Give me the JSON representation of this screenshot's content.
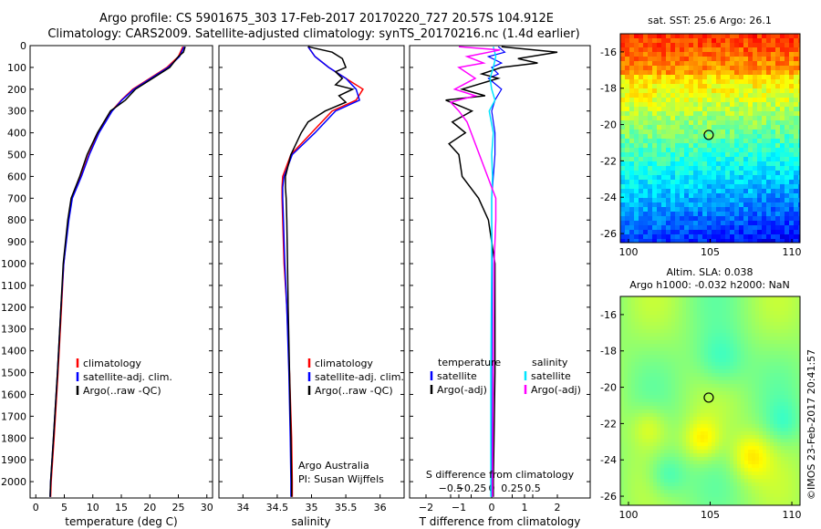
{
  "header": {
    "title_line1": "Argo profile: CS 5901675_303 17-Feb-2017 20170220_727 20.57S 104.912E",
    "title_line2": "Climatology: CARS2009. Satellite-adjusted climatology: synTS_20170216.nc (1.4d earlier)"
  },
  "side_label": "©IMOS 23-Feb-2017 20:41:57",
  "colors": {
    "climatology": "#ff0000",
    "satellite": "#0000ff",
    "argo": "#000000",
    "sal_satellite": "#00e5ff",
    "sal_argo": "#ff00ff"
  },
  "chart_data": [
    {
      "type": "line",
      "name": "temperature-profile",
      "xlabel": "temperature (deg C)",
      "xlim": [
        -1,
        31
      ],
      "xticks": [
        0,
        5,
        10,
        15,
        20,
        25,
        30
      ],
      "xtick_labels": [
        "0",
        "5",
        "10",
        "15",
        "20",
        "25",
        "30"
      ],
      "ylim": [
        2075,
        0
      ],
      "yticks": [
        0,
        100,
        200,
        300,
        400,
        500,
        600,
        700,
        800,
        900,
        1000,
        1100,
        1200,
        1300,
        1400,
        1500,
        1600,
        1700,
        1800,
        1900,
        2000
      ],
      "ytick_labels": [
        "0",
        "100",
        "200",
        "300",
        "400",
        "500",
        "600",
        "700",
        "800",
        "900",
        "1000",
        "1100",
        "1200",
        "1300",
        "1400",
        "1500",
        "1600",
        "1700",
        "1800",
        "1900",
        "2000"
      ],
      "legend": [
        "climatology",
        "satellite-adj. clim.",
        "Argo(..raw -QC)"
      ],
      "series": [
        {
          "name": "climatology",
          "depth": [
            5,
            50,
            100,
            150,
            200,
            250,
            300,
            400,
            500,
            600,
            700,
            800,
            1000,
            1200,
            1500,
            1800,
            2000,
            2070
          ],
          "values": [
            25.8,
            25.0,
            23.0,
            20.0,
            17.0,
            15.0,
            13.3,
            11.0,
            9.3,
            7.9,
            6.3,
            5.7,
            4.9,
            4.5,
            3.9,
            3.2,
            2.7,
            2.6
          ]
        },
        {
          "name": "satellite-adj. clim.",
          "depth": [
            5,
            50,
            100,
            150,
            200,
            250,
            300,
            400,
            500,
            600,
            700,
            800,
            1000,
            1200,
            1500,
            1800,
            2000,
            2070
          ],
          "values": [
            26.0,
            25.2,
            23.2,
            20.2,
            17.2,
            15.1,
            13.4,
            11.1,
            9.4,
            8.0,
            6.4,
            5.8,
            4.9,
            4.4,
            3.8,
            3.1,
            2.6,
            2.5
          ]
        },
        {
          "name": "Argo(..raw -QC)",
          "depth": [
            5,
            30,
            50,
            100,
            150,
            200,
            250,
            300,
            400,
            500,
            600,
            700,
            800,
            1000,
            1200,
            1500,
            1800,
            2000,
            2070
          ],
          "values": [
            26.2,
            25.9,
            25.0,
            23.5,
            20.5,
            17.5,
            15.7,
            13.1,
            10.8,
            9.0,
            7.7,
            6.2,
            5.6,
            4.8,
            4.4,
            3.8,
            3.1,
            2.6,
            2.5
          ]
        }
      ]
    },
    {
      "type": "line",
      "name": "salinity-profile",
      "xlabel": "salinity",
      "xlim": [
        33.65,
        36.35
      ],
      "xticks": [
        34,
        34.5,
        35,
        35.5,
        36
      ],
      "xtick_labels": [
        "34",
        "34.5",
        "35",
        "35.5",
        "36"
      ],
      "ylim": [
        2075,
        0
      ],
      "legend": [
        "climatology",
        "satellite-adj. clim.",
        "Argo(..raw -QC)"
      ],
      "annotation_line1": "Argo Australia",
      "annotation_line2": "PI: Susan Wijffels",
      "series": [
        {
          "name": "climatology",
          "depth": [
            5,
            50,
            100,
            150,
            200,
            250,
            300,
            400,
            500,
            600,
            650,
            700,
            800,
            1000,
            1200,
            1500,
            1800,
            2000,
            2070
          ],
          "values": [
            34.95,
            35.05,
            35.25,
            35.5,
            35.75,
            35.65,
            35.3,
            35.0,
            34.7,
            34.58,
            34.57,
            34.57,
            34.58,
            34.6,
            34.64,
            34.68,
            34.71,
            34.72,
            34.72
          ]
        },
        {
          "name": "satellite-adj. clim.",
          "depth": [
            5,
            50,
            100,
            150,
            200,
            250,
            300,
            400,
            500,
            600,
            650,
            700,
            800,
            1000,
            1200,
            1500,
            1800,
            2000,
            2070
          ],
          "values": [
            34.95,
            35.05,
            35.25,
            35.5,
            35.65,
            35.7,
            35.35,
            35.05,
            34.72,
            34.6,
            34.58,
            34.58,
            34.59,
            34.61,
            34.64,
            34.67,
            34.69,
            34.7,
            34.7
          ]
        },
        {
          "name": "Argo(..raw -QC)",
          "depth": [
            5,
            30,
            60,
            100,
            120,
            150,
            180,
            200,
            230,
            260,
            300,
            350,
            400,
            500,
            600,
            650,
            700,
            800,
            1000,
            1200,
            1500,
            1800,
            2000,
            2070
          ],
          "values": [
            34.95,
            35.3,
            35.45,
            35.5,
            35.35,
            35.45,
            35.35,
            35.6,
            35.4,
            35.5,
            35.2,
            34.95,
            34.85,
            34.7,
            34.62,
            34.62,
            34.63,
            34.64,
            34.65,
            34.66,
            34.68,
            34.7,
            34.71,
            34.71
          ]
        }
      ]
    },
    {
      "type": "line",
      "name": "difference-profile",
      "xlabel": "T difference from climatology",
      "xlabel_top": "S difference from climatology",
      "xlim": [
        -2.5,
        3
      ],
      "xticks": [
        -2,
        -1,
        0,
        1,
        2
      ],
      "xtick_labels": [
        "−2",
        "−1",
        "0",
        "1",
        "2"
      ],
      "s_ticks": [
        -0.5,
        -0.25,
        0,
        0.25,
        0.5
      ],
      "s_tick_labels": [
        "−0.5",
        "−0.25",
        "0",
        "0.25",
        "0.5"
      ],
      "ylim": [
        2075,
        0
      ],
      "legend_temperature_title": "temperature",
      "legend_salinity_title": "salinity",
      "legend_temperature": [
        "satellite",
        "Argo(-adj)"
      ],
      "legend_salinity": [
        "satellite",
        "Argo(-adj)"
      ],
      "series": [
        {
          "name": "temperature satellite",
          "depth": [
            5,
            30,
            50,
            80,
            100,
            130,
            150,
            200,
            250,
            300,
            400,
            500,
            600,
            700,
            800,
            1000,
            1500,
            2000,
            2070
          ],
          "values": [
            0.2,
            0.4,
            -0.1,
            0.3,
            0.0,
            0.2,
            -0.1,
            0.3,
            0.1,
            0.0,
            0.1,
            0.1,
            0.05,
            0.0,
            0.0,
            0.02,
            0.0,
            0.0,
            0.0
          ]
        },
        {
          "name": "temperature Argo(-adj)",
          "depth": [
            5,
            30,
            60,
            80,
            100,
            130,
            150,
            200,
            230,
            250,
            300,
            350,
            400,
            450,
            500,
            600,
            700,
            800,
            1000,
            1500,
            2000,
            2070
          ],
          "values": [
            0.3,
            2.0,
            0.8,
            1.4,
            0.3,
            -0.3,
            0.2,
            -0.9,
            -0.2,
            -1.4,
            -0.6,
            -1.2,
            -0.8,
            -1.3,
            -1.0,
            -0.9,
            -0.4,
            -0.1,
            0.1,
            0.1,
            0.05,
            0.05
          ]
        },
        {
          "name": "salinity satellite",
          "depth": [
            5,
            50,
            100,
            150,
            200,
            250,
            300,
            400,
            500,
            600,
            700,
            800,
            1000,
            1500,
            2000,
            2070
          ],
          "values": [
            0.02,
            0.05,
            0.02,
            -0.02,
            0.0,
            0.04,
            -0.03,
            0.02,
            0.0,
            0.01,
            0.0,
            0.0,
            0.0,
            -0.01,
            -0.01,
            -0.01
          ]
        },
        {
          "name": "salinity Argo(-adj)",
          "depth": [
            5,
            20,
            50,
            80,
            100,
            150,
            200,
            230,
            260,
            300,
            350,
            400,
            500,
            600,
            700,
            800,
            1000,
            1500,
            2000,
            2070
          ],
          "values": [
            -0.4,
            0.1,
            -0.3,
            -0.1,
            -0.4,
            -0.2,
            -0.45,
            -0.2,
            -0.5,
            -0.4,
            -0.3,
            -0.25,
            -0.15,
            -0.05,
            0.05,
            0.05,
            0.03,
            0.02,
            0.01,
            0.01
          ]
        }
      ]
    },
    {
      "type": "heatmap",
      "name": "sst-map",
      "title": "sat. SST: 25.6  Argo: 26.1",
      "xlim": [
        99.5,
        110.5
      ],
      "ylim": [
        -26.5,
        -15
      ],
      "xticks": [
        100,
        105,
        110
      ],
      "xtick_labels": [
        "100",
        "105",
        "110"
      ],
      "yticks": [
        -16,
        -18,
        -20,
        -22,
        -24,
        -26
      ],
      "ytick_labels": [
        "-16",
        "-18",
        "-20",
        "-22",
        "-24",
        "-26"
      ],
      "marker": [
        104.912,
        -20.57
      ]
    },
    {
      "type": "heatmap",
      "name": "sla-map",
      "title_line1": "Altim. SLA: 0.038",
      "title_line2": "Argo h1000: -0.032  h2000: NaN",
      "xlim": [
        99.5,
        110.5
      ],
      "ylim": [
        -26.5,
        -15
      ],
      "xticks": [
        100,
        105,
        110
      ],
      "xtick_labels": [
        "100",
        "105",
        "110"
      ],
      "yticks": [
        -16,
        -18,
        -20,
        -22,
        -24,
        -26
      ],
      "ytick_labels": [
        "-16",
        "-18",
        "-20",
        "-22",
        "-24",
        "-26"
      ],
      "marker": [
        104.912,
        -20.57
      ]
    }
  ]
}
